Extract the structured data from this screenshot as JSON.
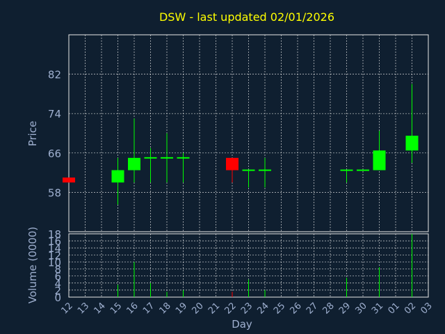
{
  "chart_data": [
    {
      "type": "candlestick",
      "title": "DSW - last updated 02/01/2026",
      "ylabel": "Price",
      "ylim": [
        50,
        90
      ],
      "yticks": [
        58,
        66,
        74,
        82
      ],
      "categories": [
        "12",
        "13",
        "14",
        "15",
        "16",
        "17",
        "18",
        "19",
        "20",
        "21",
        "22",
        "23",
        "24",
        "25",
        "26",
        "27",
        "28",
        "29",
        "30",
        "31",
        "01",
        "02",
        "03"
      ],
      "candles": [
        {
          "day": "12",
          "open": 61.0,
          "close": 60.0,
          "high": 61.0,
          "low": 60.0
        },
        {
          "day": "15",
          "open": 60.0,
          "close": 62.5,
          "high": 65.0,
          "low": 55.5
        },
        {
          "day": "16",
          "open": 62.5,
          "close": 65.0,
          "high": 73.0,
          "low": 60.0
        },
        {
          "day": "17",
          "open": 65.0,
          "close": 65.0,
          "high": 67.0,
          "low": 60.0
        },
        {
          "day": "18",
          "open": 65.0,
          "close": 65.0,
          "high": 70.0,
          "low": 60.0
        },
        {
          "day": "19",
          "open": 65.0,
          "close": 65.0,
          "high": 66.0,
          "low": 60.0
        },
        {
          "day": "22",
          "open": 65.0,
          "close": 62.5,
          "high": 65.0,
          "low": 60.0
        },
        {
          "day": "23",
          "open": 62.5,
          "close": 62.5,
          "high": 62.5,
          "low": 59.0
        },
        {
          "day": "24",
          "open": 62.5,
          "close": 62.5,
          "high": 65.0,
          "low": 59.0
        },
        {
          "day": "29",
          "open": 62.5,
          "close": 62.5,
          "high": 62.5,
          "low": 60.0
        },
        {
          "day": "30",
          "open": 62.5,
          "close": 62.5,
          "high": 62.5,
          "low": 62.5
        },
        {
          "day": "31",
          "open": 62.5,
          "close": 66.5,
          "high": 70.5,
          "low": 62.5
        },
        {
          "day": "02",
          "open": 66.5,
          "close": 69.5,
          "high": 80.0,
          "low": 64.0
        }
      ],
      "colors": {
        "up": "#00ff00",
        "down": "#ff0000",
        "title": "#ffff00",
        "axis_text": "#9fb0d0",
        "background": "#0f1f30"
      }
    },
    {
      "type": "bar",
      "ylabel": "Volume (0000)",
      "xlabel": "Day",
      "ylim": [
        0,
        18
      ],
      "yticks": [
        0,
        2,
        4,
        6,
        8,
        10,
        12,
        14,
        16,
        18
      ],
      "categories": [
        "12",
        "13",
        "14",
        "15",
        "16",
        "17",
        "18",
        "19",
        "20",
        "21",
        "22",
        "23",
        "24",
        "25",
        "26",
        "27",
        "28",
        "29",
        "30",
        "31",
        "01",
        "02",
        "03"
      ],
      "values": [
        0,
        0,
        0,
        3.5,
        10,
        4,
        1.5,
        2,
        0,
        0,
        1.5,
        5,
        2,
        0,
        0,
        0,
        0,
        5.5,
        0,
        8.5,
        0,
        18,
        0
      ],
      "bar_colors": [
        "down",
        "up",
        "up",
        "up",
        "up",
        "up",
        "up",
        "up",
        "up",
        "up",
        "down",
        "up",
        "up",
        "up",
        "up",
        "up",
        "up",
        "up",
        "up",
        "up",
        "up",
        "up",
        "up"
      ]
    }
  ]
}
